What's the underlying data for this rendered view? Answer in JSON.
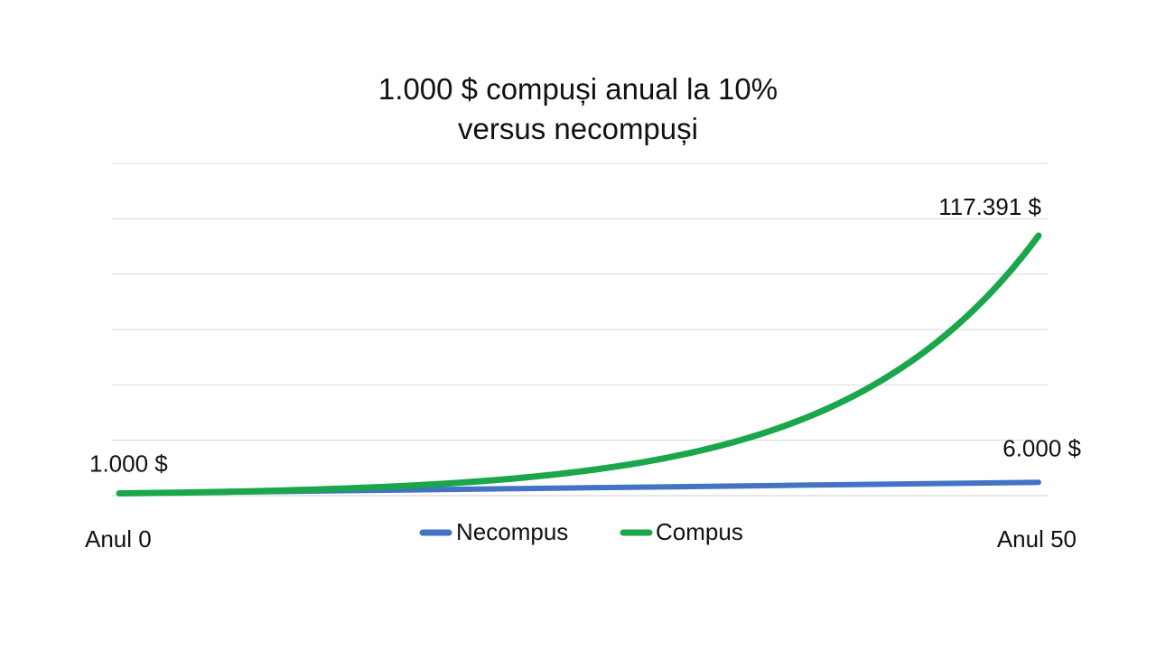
{
  "chart_data": {
    "type": "line",
    "title_lines": [
      "1.000 $ compuși anual la 10%",
      "versus necompuși"
    ],
    "x": [
      0,
      5,
      10,
      15,
      20,
      25,
      30,
      35,
      40,
      45,
      50
    ],
    "x_start_label": "Anul 0",
    "x_end_label": "Anul 50",
    "ylim": [
      0,
      150000
    ],
    "grid": true,
    "legend_position": "bottom",
    "series": [
      {
        "name": "Necompus",
        "color": "#4472c4",
        "values": [
          1000,
          1500,
          2000,
          2500,
          3000,
          3500,
          4000,
          4500,
          5000,
          5500,
          6000
        ]
      },
      {
        "name": "Compus",
        "color": "#1aa64a",
        "values": [
          1000,
          1611,
          2594,
          4177,
          6727,
          10835,
          17449,
          28102,
          45259,
          72890,
          117391
        ]
      }
    ],
    "annotations": [
      {
        "text": "1.000 $",
        "series": "Compus",
        "at": "start"
      },
      {
        "text": "117.391 $",
        "series": "Compus",
        "at": "end"
      },
      {
        "text": "6.000 $",
        "series": "Necompus",
        "at": "end"
      }
    ]
  }
}
